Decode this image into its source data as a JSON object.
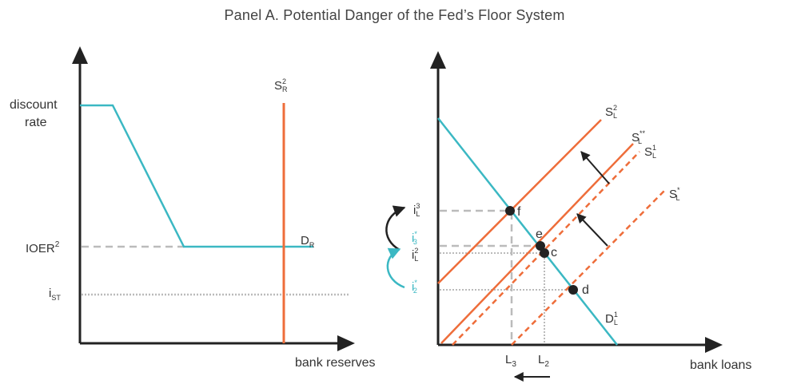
{
  "title": "Panel A. Potential Danger of the Fed’s Floor System",
  "colors": {
    "demand": "#3bb8c3",
    "supply": "#ee6d3a",
    "dashed_gray": "#bbbbbb",
    "axis": "#222222",
    "arrow_teal": "#3bb8c3"
  },
  "left_panel": {
    "y_labels": {
      "discount_line1": "discount",
      "discount_line2": "rate",
      "ioer": "IOER",
      "ioer_sup": "2",
      "ist": "i",
      "ist_sub": "ST"
    },
    "x_label": "bank reserves",
    "supply_label": {
      "base": "S",
      "sup": "2",
      "sub": "R"
    },
    "demand_label": {
      "base": "D",
      "sub": "R"
    }
  },
  "right_panel": {
    "x_label": "bank loans",
    "y_labels": {
      "i3L": {
        "base": "i",
        "sup": "3",
        "sub": "L"
      },
      "i3star": {
        "base": "i",
        "sup": "*",
        "sub": "3"
      },
      "i2L": {
        "base": "i",
        "sup": "2",
        "sub": "L"
      },
      "i2star": {
        "base": "i",
        "sup": "*",
        "sub": "2"
      }
    },
    "x_ticks": {
      "L3": {
        "base": "L",
        "sub": "3"
      },
      "L2": {
        "base": "L",
        "sub": "2"
      }
    },
    "curves": {
      "S2L": {
        "base": "S",
        "sup": "2",
        "sub": "L"
      },
      "S1L": {
        "base": "S",
        "sup": "1",
        "sub": "L"
      },
      "SstarstarL": {
        "base": "S",
        "sup": "**",
        "sub": "L"
      },
      "SstarL": {
        "base": "S",
        "sup": "*",
        "sub": "L"
      },
      "D1L": {
        "base": "D",
        "sup": "1",
        "sub": "L"
      }
    },
    "points": {
      "f": "f",
      "e": "e",
      "c": "c",
      "d": "d"
    }
  }
}
